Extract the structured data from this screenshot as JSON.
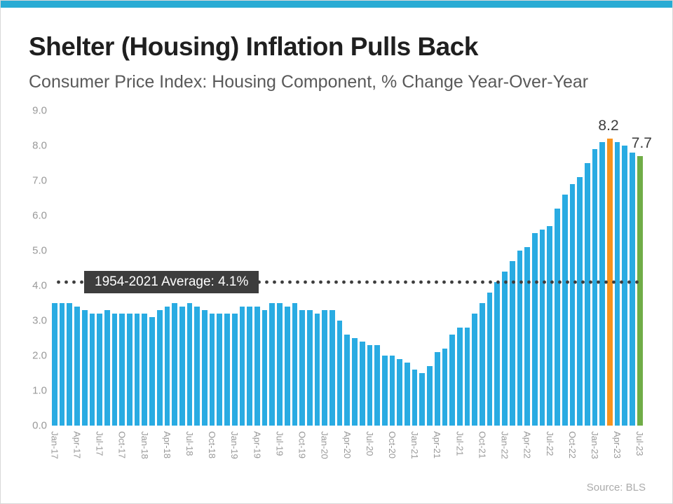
{
  "colors": {
    "accent_strip": "#29ABD4",
    "bar_blue": "#29ABE2",
    "highlight_orange": "#F7931E",
    "highlight_green": "#70AD47",
    "average_dark": "#3D3D3D",
    "title_text": "#1F1F1F",
    "subtitle_text": "#595959",
    "axis_text": "#999999",
    "source_text": "#ABABAB"
  },
  "header": {
    "title": "Shelter (Housing) Inflation Pulls Back",
    "subtitle": "Consumer Price Index: Housing Component, % Change Year-Over-Year"
  },
  "footer": {
    "source": "Source: BLS"
  },
  "chart_data": {
    "type": "bar",
    "title": "Shelter (Housing) Inflation Pulls Back",
    "subtitle": "Consumer Price Index: Housing Component, % Change Year-Over-Year",
    "xlabel": "",
    "ylabel": "",
    "ylim": [
      0,
      9
    ],
    "yticks": [
      "0.0",
      "1.0",
      "2.0",
      "3.0",
      "4.0",
      "5.0",
      "6.0",
      "7.0",
      "8.0",
      "9.0"
    ],
    "grid": false,
    "legend": false,
    "x_label_every": 3,
    "categories": [
      "Jan-17",
      "Feb-17",
      "Mar-17",
      "Apr-17",
      "May-17",
      "Jun-17",
      "Jul-17",
      "Aug-17",
      "Sep-17",
      "Oct-17",
      "Nov-17",
      "Dec-17",
      "Jan-18",
      "Feb-18",
      "Mar-18",
      "Apr-18",
      "May-18",
      "Jun-18",
      "Jul-18",
      "Aug-18",
      "Sep-18",
      "Oct-18",
      "Nov-18",
      "Dec-18",
      "Jan-19",
      "Feb-19",
      "Mar-19",
      "Apr-19",
      "May-19",
      "Jun-19",
      "Jul-19",
      "Aug-19",
      "Sep-19",
      "Oct-19",
      "Nov-19",
      "Dec-19",
      "Jan-20",
      "Feb-20",
      "Mar-20",
      "Apr-20",
      "May-20",
      "Jun-20",
      "Jul-20",
      "Aug-20",
      "Sep-20",
      "Oct-20",
      "Nov-20",
      "Dec-20",
      "Jan-21",
      "Feb-21",
      "Mar-21",
      "Apr-21",
      "May-21",
      "Jun-21",
      "Jul-21",
      "Aug-21",
      "Sep-21",
      "Oct-21",
      "Nov-21",
      "Dec-21",
      "Jan-22",
      "Feb-22",
      "Mar-22",
      "Apr-22",
      "May-22",
      "Jun-22",
      "Jul-22",
      "Aug-22",
      "Sep-22",
      "Oct-22",
      "Nov-22",
      "Dec-22",
      "Jan-23",
      "Feb-23",
      "Mar-23",
      "Apr-23",
      "May-23",
      "Jun-23",
      "Jul-23"
    ],
    "values": [
      3.5,
      3.5,
      3.5,
      3.4,
      3.3,
      3.2,
      3.2,
      3.3,
      3.2,
      3.2,
      3.2,
      3.2,
      3.2,
      3.1,
      3.3,
      3.4,
      3.5,
      3.4,
      3.5,
      3.4,
      3.3,
      3.2,
      3.2,
      3.2,
      3.2,
      3.4,
      3.4,
      3.4,
      3.3,
      3.5,
      3.5,
      3.4,
      3.5,
      3.3,
      3.3,
      3.2,
      3.3,
      3.3,
      3.0,
      2.6,
      2.5,
      2.4,
      2.3,
      2.3,
      2.0,
      2.0,
      1.9,
      1.8,
      1.6,
      1.5,
      1.7,
      2.1,
      2.2,
      2.6,
      2.8,
      2.8,
      3.2,
      3.5,
      3.8,
      4.1,
      4.4,
      4.7,
      5.0,
      5.1,
      5.5,
      5.6,
      5.7,
      6.2,
      6.6,
      6.9,
      7.1,
      7.5,
      7.9,
      8.1,
      8.2,
      8.1,
      8.0,
      7.8,
      7.7
    ],
    "bar_color_default": "#29ABE2",
    "highlight_bars": {
      "74": "#F7931E",
      "78": "#70AD47"
    },
    "average_line": {
      "value": 4.1,
      "label": "1954-2021 Average: 4.1%",
      "style": "dotted",
      "color": "#3D3D3D"
    },
    "annotations": [
      {
        "index": 74,
        "text": "8.2",
        "anchor": "center"
      },
      {
        "index": 78,
        "text": "7.7",
        "anchor": "right"
      }
    ]
  }
}
